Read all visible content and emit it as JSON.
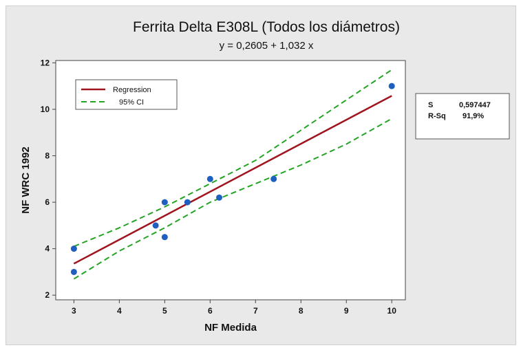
{
  "chart_data": {
    "type": "scatter",
    "title": "Ferrita Delta E308L (Todos los diámetros)",
    "subtitle": "y = 0,2605 + 1,032 x",
    "xlabel": "NF Medida",
    "ylabel": "NF WRC 1992",
    "xlim": [
      2.6,
      10.3
    ],
    "ylim": [
      1.8,
      12.1
    ],
    "xticks": [
      3,
      4,
      5,
      6,
      7,
      8,
      9,
      10
    ],
    "yticks": [
      2,
      4,
      6,
      8,
      10,
      12
    ],
    "grid": false,
    "legend_position": "top-left",
    "colors": {
      "points": "#1f5fbf",
      "regression": "#a0141e",
      "ci": "#23a323",
      "plot_bg": "#ffffff",
      "frame_bg": "#e9e9e9"
    },
    "points": [
      {
        "x": 3.0,
        "y": 4.0
      },
      {
        "x": 3.0,
        "y": 3.0
      },
      {
        "x": 4.8,
        "y": 5.0
      },
      {
        "x": 5.0,
        "y": 6.0
      },
      {
        "x": 5.0,
        "y": 4.5
      },
      {
        "x": 5.5,
        "y": 6.0
      },
      {
        "x": 6.0,
        "y": 7.0
      },
      {
        "x": 6.2,
        "y": 6.2
      },
      {
        "x": 7.4,
        "y": 7.0
      },
      {
        "x": 10.0,
        "y": 11.0
      }
    ],
    "regression": {
      "intercept": 0.2605,
      "slope": 1.032,
      "x_range": [
        3,
        10
      ]
    },
    "ci_upper": [
      {
        "x": 3,
        "y": 4.1
      },
      {
        "x": 4,
        "y": 4.9
      },
      {
        "x": 5,
        "y": 5.8
      },
      {
        "x": 6,
        "y": 6.8
      },
      {
        "x": 7,
        "y": 7.8
      },
      {
        "x": 8,
        "y": 9.1
      },
      {
        "x": 9,
        "y": 10.4
      },
      {
        "x": 10,
        "y": 11.7
      }
    ],
    "ci_lower": [
      {
        "x": 3,
        "y": 2.7
      },
      {
        "x": 4,
        "y": 3.9
      },
      {
        "x": 5,
        "y": 4.9
      },
      {
        "x": 6,
        "y": 6.0
      },
      {
        "x": 7,
        "y": 6.8
      },
      {
        "x": 8,
        "y": 7.6
      },
      {
        "x": 9,
        "y": 8.5
      },
      {
        "x": 10,
        "y": 9.6
      }
    ],
    "legend": [
      {
        "label": "Regression",
        "style": "solid"
      },
      {
        "label": "95% CI",
        "style": "dashed"
      }
    ],
    "stats": [
      {
        "label": "S",
        "value": "0,597447"
      },
      {
        "label": "R-Sq",
        "value": "91,9%"
      }
    ]
  }
}
